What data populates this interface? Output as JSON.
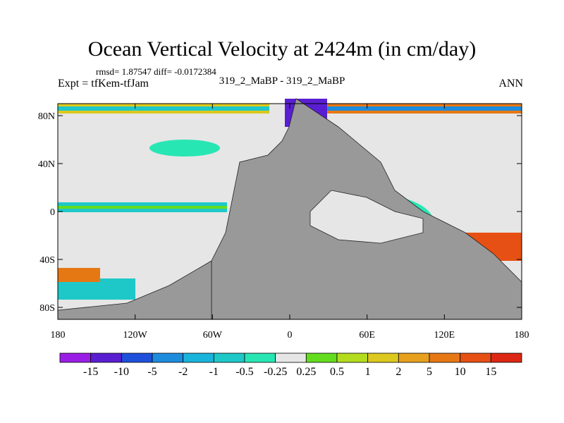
{
  "title": "Ocean Vertical Velocity at 2424m (in cm/day)",
  "stats": "rmsd= 1.87547 diff= -0.0172384",
  "experiment": "Expt = tfKem-tfJam",
  "cases": "319_2_MaBP - 319_2_MaBP",
  "season": "ANN",
  "map": {
    "projection": "cylindrical equidistant",
    "lon_range": [
      -180,
      180
    ],
    "lat_range": [
      -90,
      90
    ],
    "lat_ticks": [
      {
        "value": 80,
        "label": "80N"
      },
      {
        "value": 40,
        "label": "40N"
      },
      {
        "value": 0,
        "label": "0"
      },
      {
        "value": -40,
        "label": "40S"
      },
      {
        "value": -80,
        "label": "80S"
      }
    ],
    "lon_ticks": [
      {
        "value": -180,
        "label": "180"
      },
      {
        "value": -120,
        "label": "120W"
      },
      {
        "value": -60,
        "label": "60W"
      },
      {
        "value": 0,
        "label": "0"
      },
      {
        "value": 60,
        "label": "60E"
      },
      {
        "value": 120,
        "label": "120E"
      },
      {
        "value": 180,
        "label": "180"
      }
    ],
    "land_color": "#999999",
    "near_zero_color": "#e6e6e6"
  },
  "colorbar": {
    "labels": [
      "-15",
      "-10",
      "-5",
      "-2",
      "-1",
      "-0.5",
      "-0.25",
      "0.25",
      "0.5",
      "1",
      "2",
      "5",
      "10",
      "15"
    ],
    "colors": [
      "#9b1ee6",
      "#5a1ed2",
      "#1e50dc",
      "#1e8cdc",
      "#19b4dc",
      "#1ec8c8",
      "#28e6b4",
      "#e6e6e6",
      "#64dc1e",
      "#b4dc1e",
      "#dcc81e",
      "#e6a01e",
      "#e67814",
      "#e65014",
      "#dc2814"
    ]
  }
}
